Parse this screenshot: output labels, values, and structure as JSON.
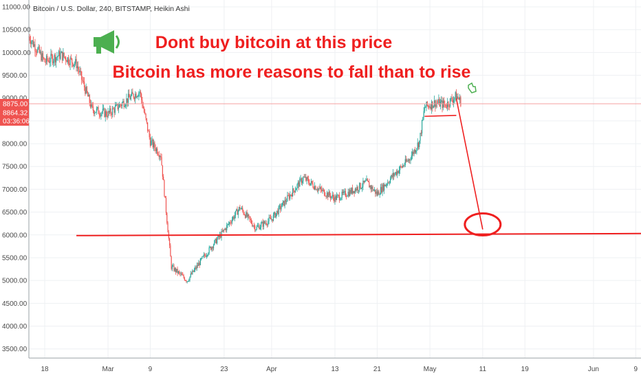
{
  "chart_data": {
    "type": "candlestick",
    "title": "Bitcoin / U.S. Dollar, 240, BITSTAMP, Heikin Ashi",
    "y_ticks": [
      3500,
      4000,
      4500,
      5000,
      5500,
      6000,
      6500,
      7000,
      7500,
      8000,
      8500,
      9000,
      9500,
      10000,
      10500,
      11000
    ],
    "y_tick_labels": [
      "3500.00",
      "4000.00",
      "4500.00",
      "5000.00",
      "5500.00",
      "6000.00",
      "6500.00",
      "7000.00",
      "7500.00",
      "8000.00",
      "8500.00",
      "9000.00",
      "9500.00",
      "10000.00",
      "10500.00",
      "11000.00"
    ],
    "ylim": [
      3300,
      11150
    ],
    "x_ticks": [
      {
        "label": "18",
        "date": "2020-02-18"
      },
      {
        "label": "Mar",
        "date": "2020-03-01"
      },
      {
        "label": "9",
        "date": "2020-03-09"
      },
      {
        "label": "23",
        "date": "2020-03-23"
      },
      {
        "label": "Apr",
        "date": "2020-04-01"
      },
      {
        "label": "13",
        "date": "2020-04-13"
      },
      {
        "label": "21",
        "date": "2020-04-21"
      },
      {
        "label": "May",
        "date": "2020-05-01"
      },
      {
        "label": "11",
        "date": "2020-05-11"
      },
      {
        "label": "19",
        "date": "2020-05-19"
      },
      {
        "label": "Jun",
        "date": "2020-06-01"
      },
      {
        "label": "9",
        "date": "2020-06-09"
      }
    ],
    "xlim": [
      "2020-02-15",
      "2020-06-10"
    ],
    "price_path": [
      {
        "date": "2020-02-15",
        "close": 10350
      },
      {
        "date": "2020-02-18",
        "close": 9800
      },
      {
        "date": "2020-02-21",
        "close": 9950
      },
      {
        "date": "2020-02-24",
        "close": 9750
      },
      {
        "date": "2020-02-27",
        "close": 8750
      },
      {
        "date": "2020-03-01",
        "close": 8650
      },
      {
        "date": "2020-03-05",
        "close": 9000
      },
      {
        "date": "2020-03-07",
        "close": 9150
      },
      {
        "date": "2020-03-09",
        "close": 8050
      },
      {
        "date": "2020-03-11",
        "close": 7750
      },
      {
        "date": "2020-03-13",
        "close": 5300
      },
      {
        "date": "2020-03-16",
        "close": 5000
      },
      {
        "date": "2020-03-19",
        "close": 5500
      },
      {
        "date": "2020-03-23",
        "close": 6100
      },
      {
        "date": "2020-03-26",
        "close": 6600
      },
      {
        "date": "2020-03-29",
        "close": 6150
      },
      {
        "date": "2020-04-01",
        "close": 6350
      },
      {
        "date": "2020-04-04",
        "close": 6800
      },
      {
        "date": "2020-04-07",
        "close": 7250
      },
      {
        "date": "2020-04-10",
        "close": 7000
      },
      {
        "date": "2020-04-13",
        "close": 6800
      },
      {
        "date": "2020-04-16",
        "close": 6950
      },
      {
        "date": "2020-04-19",
        "close": 7150
      },
      {
        "date": "2020-04-21",
        "close": 6900
      },
      {
        "date": "2020-04-24",
        "close": 7300
      },
      {
        "date": "2020-04-27",
        "close": 7650
      },
      {
        "date": "2020-04-29",
        "close": 8050
      },
      {
        "date": "2020-04-30",
        "close": 8800
      },
      {
        "date": "2020-05-02",
        "close": 8900
      },
      {
        "date": "2020-05-04",
        "close": 8850
      },
      {
        "date": "2020-05-06",
        "close": 9050
      },
      {
        "date": "2020-05-07",
        "close": 8900
      }
    ],
    "horizontal_lines": [
      {
        "price": 8875.0,
        "color": "#f4a0a0"
      }
    ],
    "price_tags": [
      {
        "text": "8875.00",
        "price": 8875
      },
      {
        "text": "8864.32",
        "price": 8680
      },
      {
        "text": "03:36:06",
        "price": 8500
      }
    ],
    "drawings": [
      {
        "kind": "support-line",
        "from": {
          "date": "2020-02-24",
          "price": 5985
        },
        "to": {
          "date": "2020-06-10",
          "price": 6030
        },
        "color": "#ef1f1f"
      },
      {
        "kind": "range-box-bottom",
        "from": {
          "date": "2020-04-30",
          "price": 8600
        },
        "to": {
          "date": "2020-05-06",
          "price": 8620
        },
        "color": "#ef1f1f"
      },
      {
        "kind": "projection-arrow",
        "from": {
          "date": "2020-05-06",
          "price": 8990
        },
        "to": {
          "date": "2020-05-11",
          "price": 6120
        },
        "color": "#ef1f1f"
      },
      {
        "kind": "target-circle",
        "center": {
          "date": "2020-05-11",
          "price": 6230
        },
        "color": "#ef1f1f"
      }
    ],
    "colors": {
      "up": "#26a69a",
      "down": "#ef5350",
      "annotation": "#ef1f1f",
      "icon": "#4caf50",
      "tag": "#ef5350"
    }
  },
  "annotations": {
    "line1": "Dont buy bitcoin at this price",
    "line2": "Bitcoin has more reasons to fall than to rise"
  },
  "icons": {
    "megaphone": "megaphone-icon",
    "pointer": "hand-pointer-icon"
  }
}
